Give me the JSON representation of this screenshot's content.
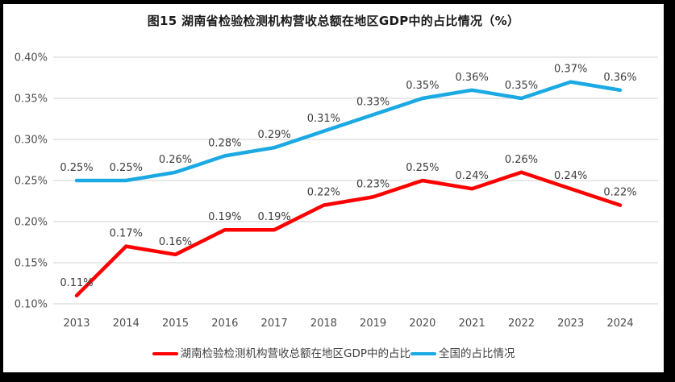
{
  "chart_data": {
    "type": "line",
    "title": "图15 湖南省检验检测机构营收总额在地区GDP中的占比情况（%）",
    "categories": [
      "2013",
      "2014",
      "2015",
      "2016",
      "2017",
      "2018",
      "2019",
      "2020",
      "2021",
      "2022",
      "2023",
      "2024"
    ],
    "series": [
      {
        "name": "湖南检验检测机构营收总额在地区GDP中的占比",
        "color": "#FE0000",
        "values": [
          0.11,
          0.17,
          0.16,
          0.19,
          0.19,
          0.22,
          0.23,
          0.25,
          0.24,
          0.26,
          0.24,
          0.22
        ],
        "point_labels": [
          "0.11%",
          "0.17%",
          "0.16%",
          "0.19%",
          "0.19%",
          "0.22%",
          "0.23%",
          "0.25%",
          "0.24%",
          "0.26%",
          "0.24%",
          "0.22%"
        ]
      },
      {
        "name": "全国的占比情况",
        "color": "#1BA9E3",
        "values": [
          0.25,
          0.25,
          0.26,
          0.28,
          0.29,
          0.31,
          0.33,
          0.35,
          0.36,
          0.35,
          0.37,
          0.36
        ],
        "point_labels": [
          "0.25%",
          "0.25%",
          "0.26%",
          "0.28%",
          "0.29%",
          "0.31%",
          "0.33%",
          "0.35%",
          "0.36%",
          "0.35%",
          "0.37%",
          "0.36%"
        ]
      }
    ],
    "xlabel": "",
    "ylabel": "",
    "ylim": [
      0.1,
      0.4
    ],
    "yticks": [
      0.1,
      0.15,
      0.2,
      0.25,
      0.3,
      0.35,
      0.4
    ],
    "ytick_labels": [
      "0.10%",
      "0.15%",
      "0.20%",
      "0.25%",
      "0.30%",
      "0.35%",
      "0.40%"
    ],
    "grid": true,
    "legend_position": "bottom"
  },
  "colors": {
    "frame": "#000000",
    "background": "#FFFFFF",
    "gridline": "#D9D9D9",
    "tick_text": "#4D4D4D",
    "data_label_text": "#3D3D3D",
    "title_text": "#1A1A1A"
  }
}
